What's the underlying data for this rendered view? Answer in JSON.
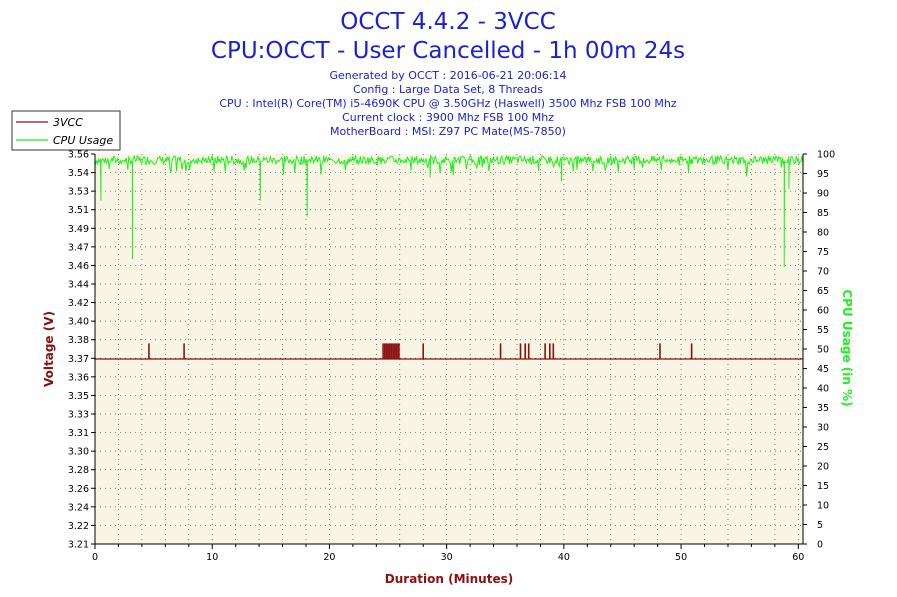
{
  "title": "OCCT 4.4.2 - 3VCC",
  "subtitle": "CPU:OCCT - User Cancelled - 1h 00m 24s",
  "info_lines": [
    "Generated by OCCT : 2016-06-21 20:06:14",
    "Config : Large Data Set, 8 Threads",
    "CPU : Intel(R) Core(TM) i5-4690K CPU @ 3.50GHz (Haswell) 3500 Mhz FSB 100 Mhz",
    "Current clock : 3900 Mhz FSB 100 Mhz",
    "MotherBoard : MSI: Z97 PC Mate(MS-7850)"
  ],
  "colors": {
    "voltage": "#8b1010",
    "cpu": "#22ee22",
    "text": "#1a22d0",
    "plot_bg": "#f8f5e4"
  },
  "chart_data": {
    "type": "line",
    "title": "OCCT 4.4.2 - 3VCC",
    "xlabel": "Duration (Minutes)",
    "ylabel": "Voltage (V)",
    "y2label": "CPU Usage (in %)",
    "xlim": [
      0,
      60.4
    ],
    "ylim": [
      3.21,
      3.56
    ],
    "y2lim": [
      0,
      100
    ],
    "x_ticks": [
      0,
      10,
      20,
      30,
      40,
      50,
      60
    ],
    "y_ticks": [
      "3.21",
      "3.22",
      "3.24",
      "3.26",
      "3.28",
      "3.30",
      "3.31",
      "3.33",
      "3.35",
      "3.36",
      "3.37",
      "3.38",
      "3.40",
      "3.42",
      "3.44",
      "3.46",
      "3.47",
      "3.49",
      "3.51",
      "3.53",
      "3.54",
      "3.56"
    ],
    "y2_ticks": [
      0,
      5,
      10,
      15,
      20,
      25,
      30,
      35,
      40,
      45,
      50,
      55,
      60,
      65,
      70,
      75,
      80,
      85,
      90,
      95,
      100
    ],
    "grid": true,
    "legend_position": "top-left",
    "series": [
      {
        "name": "3VCC",
        "axis": "left",
        "baseline": 3.376,
        "spikes": [
          {
            "x": 4.6,
            "v": 3.39
          },
          {
            "x": 7.6,
            "v": 3.39
          },
          {
            "x": 24.7,
            "v": 3.39
          },
          {
            "x": 24.9,
            "v": 3.39
          },
          {
            "x": 25.1,
            "v": 3.39
          },
          {
            "x": 25.3,
            "v": 3.39
          },
          {
            "x": 25.5,
            "v": 3.39
          },
          {
            "x": 25.7,
            "v": 3.39
          },
          {
            "x": 25.9,
            "v": 3.39
          },
          {
            "x": 28.0,
            "v": 3.39
          },
          {
            "x": 34.6,
            "v": 3.39
          },
          {
            "x": 36.3,
            "v": 3.39
          },
          {
            "x": 36.7,
            "v": 3.39
          },
          {
            "x": 37.0,
            "v": 3.39
          },
          {
            "x": 38.4,
            "v": 3.39
          },
          {
            "x": 38.8,
            "v": 3.39
          },
          {
            "x": 39.1,
            "v": 3.39
          },
          {
            "x": 48.2,
            "v": 3.39
          },
          {
            "x": 50.9,
            "v": 3.39
          }
        ]
      },
      {
        "name": "CPU Usage",
        "axis": "right",
        "baseline": 98,
        "dips": [
          {
            "x": 0.5,
            "v": 88
          },
          {
            "x": 3.2,
            "v": 73
          },
          {
            "x": 14.1,
            "v": 88
          },
          {
            "x": 18.1,
            "v": 84
          },
          {
            "x": 28.6,
            "v": 94
          },
          {
            "x": 39.8,
            "v": 93
          },
          {
            "x": 58.8,
            "v": 71
          },
          {
            "x": 59.2,
            "v": 91
          }
        ]
      }
    ]
  }
}
